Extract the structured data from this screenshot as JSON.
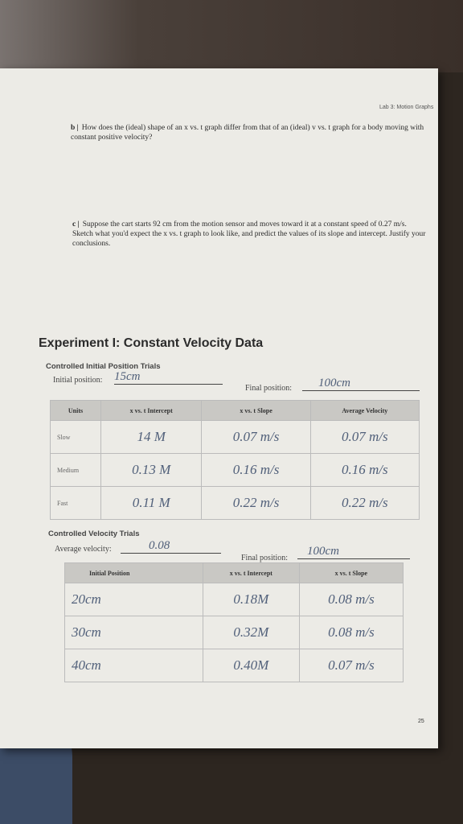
{
  "header": "Lab 3: Motion Graphs",
  "questions": [
    {
      "label": "b |",
      "text": "How does the (ideal) shape of an x vs. t graph differ from that of an (ideal) v vs. t graph for a body moving with constant positive velocity?"
    },
    {
      "label": "c |",
      "text": "Suppose the cart starts 92 cm from the motion sensor and moves toward it at a constant speed of 0.27 m/s. Sketch what you'd expect the x vs. t graph to look like, and predict the values of its slope and intercept. Justify your conclusions."
    }
  ],
  "section_title": "Experiment I: Constant Velocity Data",
  "table1": {
    "title": "Controlled Initial Position Trials",
    "initial_label": "Initial position:",
    "initial_value": "15cm",
    "final_label": "Final position:",
    "final_value": "100cm",
    "headers": [
      "Units",
      "x vs. t Intercept",
      "x vs. t Slope",
      "Average Velocity"
    ],
    "rows": [
      [
        "Slow",
        "14 M",
        "0.07 m/s",
        "0.07 m/s"
      ],
      [
        "Medium",
        "0.13 M",
        "0.16 m/s",
        "0.16 m/s"
      ],
      [
        "Fast",
        "0.11 M",
        "0.22 m/s",
        "0.22 m/s"
      ]
    ]
  },
  "table2": {
    "title": "Controlled Velocity Trials",
    "average_label": "Average velocity:",
    "average_value": "0.08",
    "final_label": "Final position:",
    "final_value": "100cm",
    "headers": [
      "Initial Position",
      "x vs. t Intercept",
      "x vs. t Slope"
    ],
    "rows": [
      [
        "20cm",
        "0.18M",
        "0.08 m/s"
      ],
      [
        "30cm",
        "0.32M",
        "0.08 m/s"
      ],
      [
        "40cm",
        "0.40M",
        "0.07 m/s"
      ]
    ]
  },
  "page_number": "25"
}
